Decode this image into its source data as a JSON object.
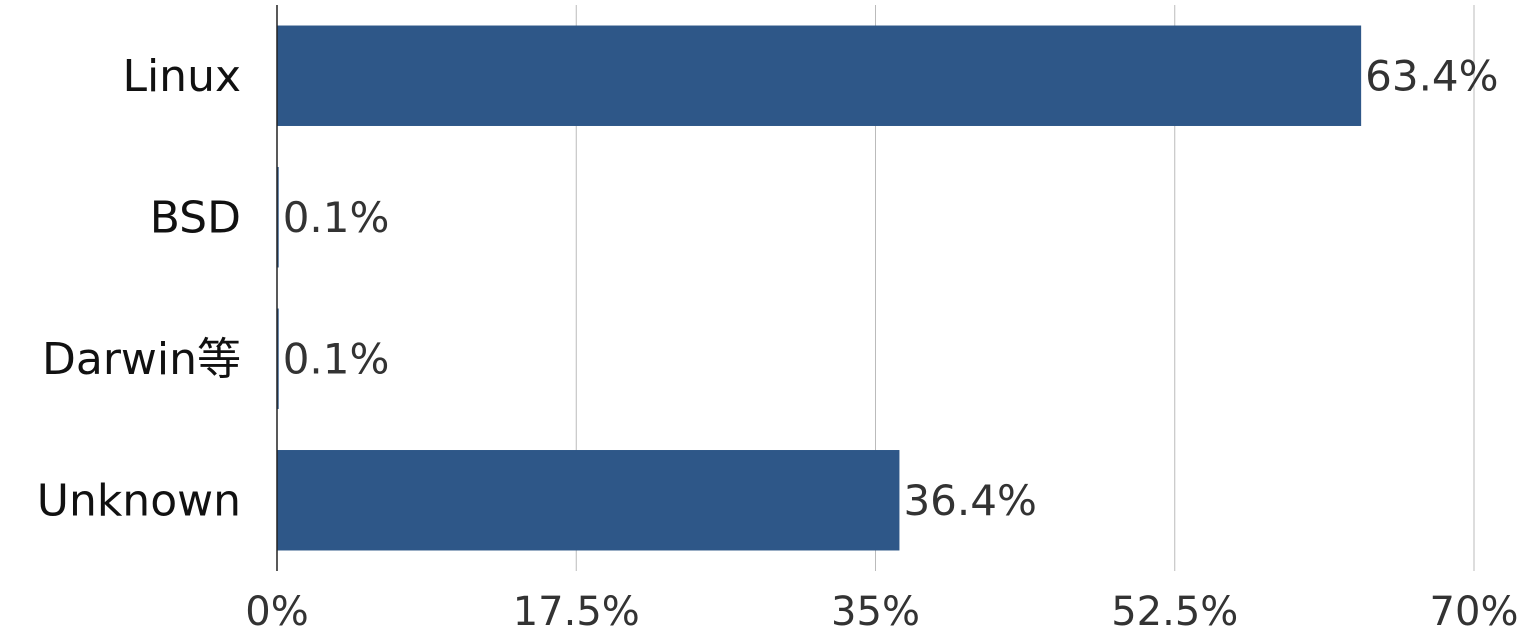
{
  "chart_data": {
    "type": "bar",
    "orientation": "horizontal",
    "categories": [
      "Linux",
      "BSD",
      "Darwin等",
      "Unknown"
    ],
    "values": [
      63.4,
      0.1,
      0.1,
      36.4
    ],
    "value_labels": [
      "63.4%",
      "0.1%",
      "0.1%",
      "36.4%"
    ],
    "color": "#2e5788",
    "xlim": [
      0,
      70
    ],
    "xticks": [
      {
        "value": 0,
        "label": "0%"
      },
      {
        "value": 17.5,
        "label": "17.5%"
      },
      {
        "value": 35,
        "label": "35%"
      },
      {
        "value": 52.5,
        "label": "52.5%"
      },
      {
        "value": 70,
        "label": "70%"
      }
    ],
    "grid": true
  }
}
